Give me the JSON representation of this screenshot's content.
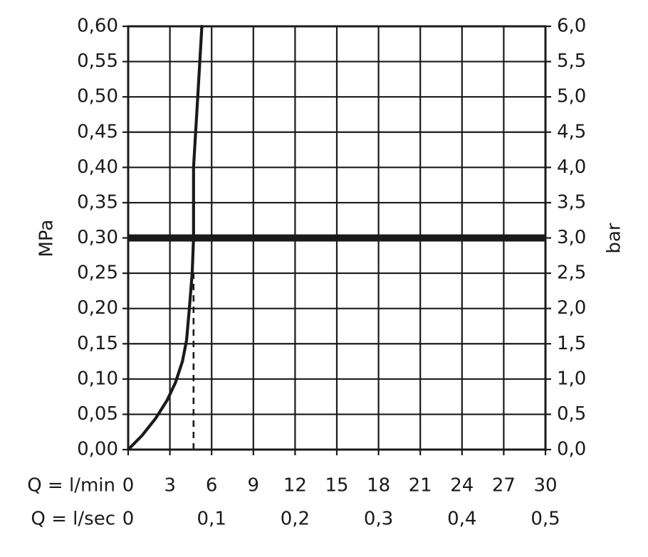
{
  "chart_data": {
    "type": "line",
    "title": "",
    "ylabel_left": "MPa",
    "ylabel_right": "bar",
    "xaxis_rows": [
      {
        "prefix": "Q = l/min",
        "ticks": [
          {
            "label": "0",
            "value": 0
          },
          {
            "label": "3",
            "value": 3
          },
          {
            "label": "6",
            "value": 6
          },
          {
            "label": "9",
            "value": 9
          },
          {
            "label": "12",
            "value": 12
          },
          {
            "label": "15",
            "value": 15
          },
          {
            "label": "18",
            "value": 18
          },
          {
            "label": "21",
            "value": 21
          },
          {
            "label": "24",
            "value": 24
          },
          {
            "label": "27",
            "value": 27
          },
          {
            "label": "30",
            "value": 30
          }
        ]
      },
      {
        "prefix": "Q = l/sec",
        "ticks": [
          {
            "label": "0",
            "value": 0
          },
          {
            "label": "0,1",
            "value": 6
          },
          {
            "label": "0,2",
            "value": 12
          },
          {
            "label": "0,3",
            "value": 18
          },
          {
            "label": "0,4",
            "value": 24
          },
          {
            "label": "0,5",
            "value": 30
          }
        ]
      }
    ],
    "xlim": [
      0,
      30
    ],
    "ylim": [
      0,
      0.6
    ],
    "yticks_left": [
      "0,00",
      "0,05",
      "0,10",
      "0,15",
      "0,20",
      "0,25",
      "0,30",
      "0,35",
      "0,40",
      "0,45",
      "0,50",
      "0,55",
      "0,60"
    ],
    "yticks_right": [
      "0,0",
      "0,5",
      "1,0",
      "1,5",
      "2,0",
      "2,5",
      "3,0",
      "3,5",
      "4,0",
      "4,5",
      "5,0",
      "5,5",
      "6,0"
    ],
    "grid": true,
    "series": [
      {
        "x_unit": "l/min",
        "y_unit": "MPa",
        "points": [
          [
            0,
            0.0
          ],
          [
            1,
            0.02
          ],
          [
            2,
            0.045
          ],
          [
            2.8,
            0.07
          ],
          [
            3.4,
            0.095
          ],
          [
            3.9,
            0.125
          ],
          [
            4.2,
            0.155
          ],
          [
            4.4,
            0.2
          ],
          [
            4.6,
            0.25
          ],
          [
            4.7,
            0.3
          ],
          [
            4.7,
            0.4
          ],
          [
            5.0,
            0.5
          ],
          [
            5.3,
            0.6
          ]
        ]
      }
    ],
    "reference_lines": [
      {
        "orientation": "horizontal",
        "y": 0.3,
        "style": "bold"
      },
      {
        "orientation": "vertical",
        "x": 4.7,
        "y_range": [
          0,
          0.25
        ],
        "style": "dashed"
      }
    ],
    "colors": {
      "line": "#1a1a1a",
      "grid": "#1a1a1a",
      "background": "#ffffff"
    }
  }
}
